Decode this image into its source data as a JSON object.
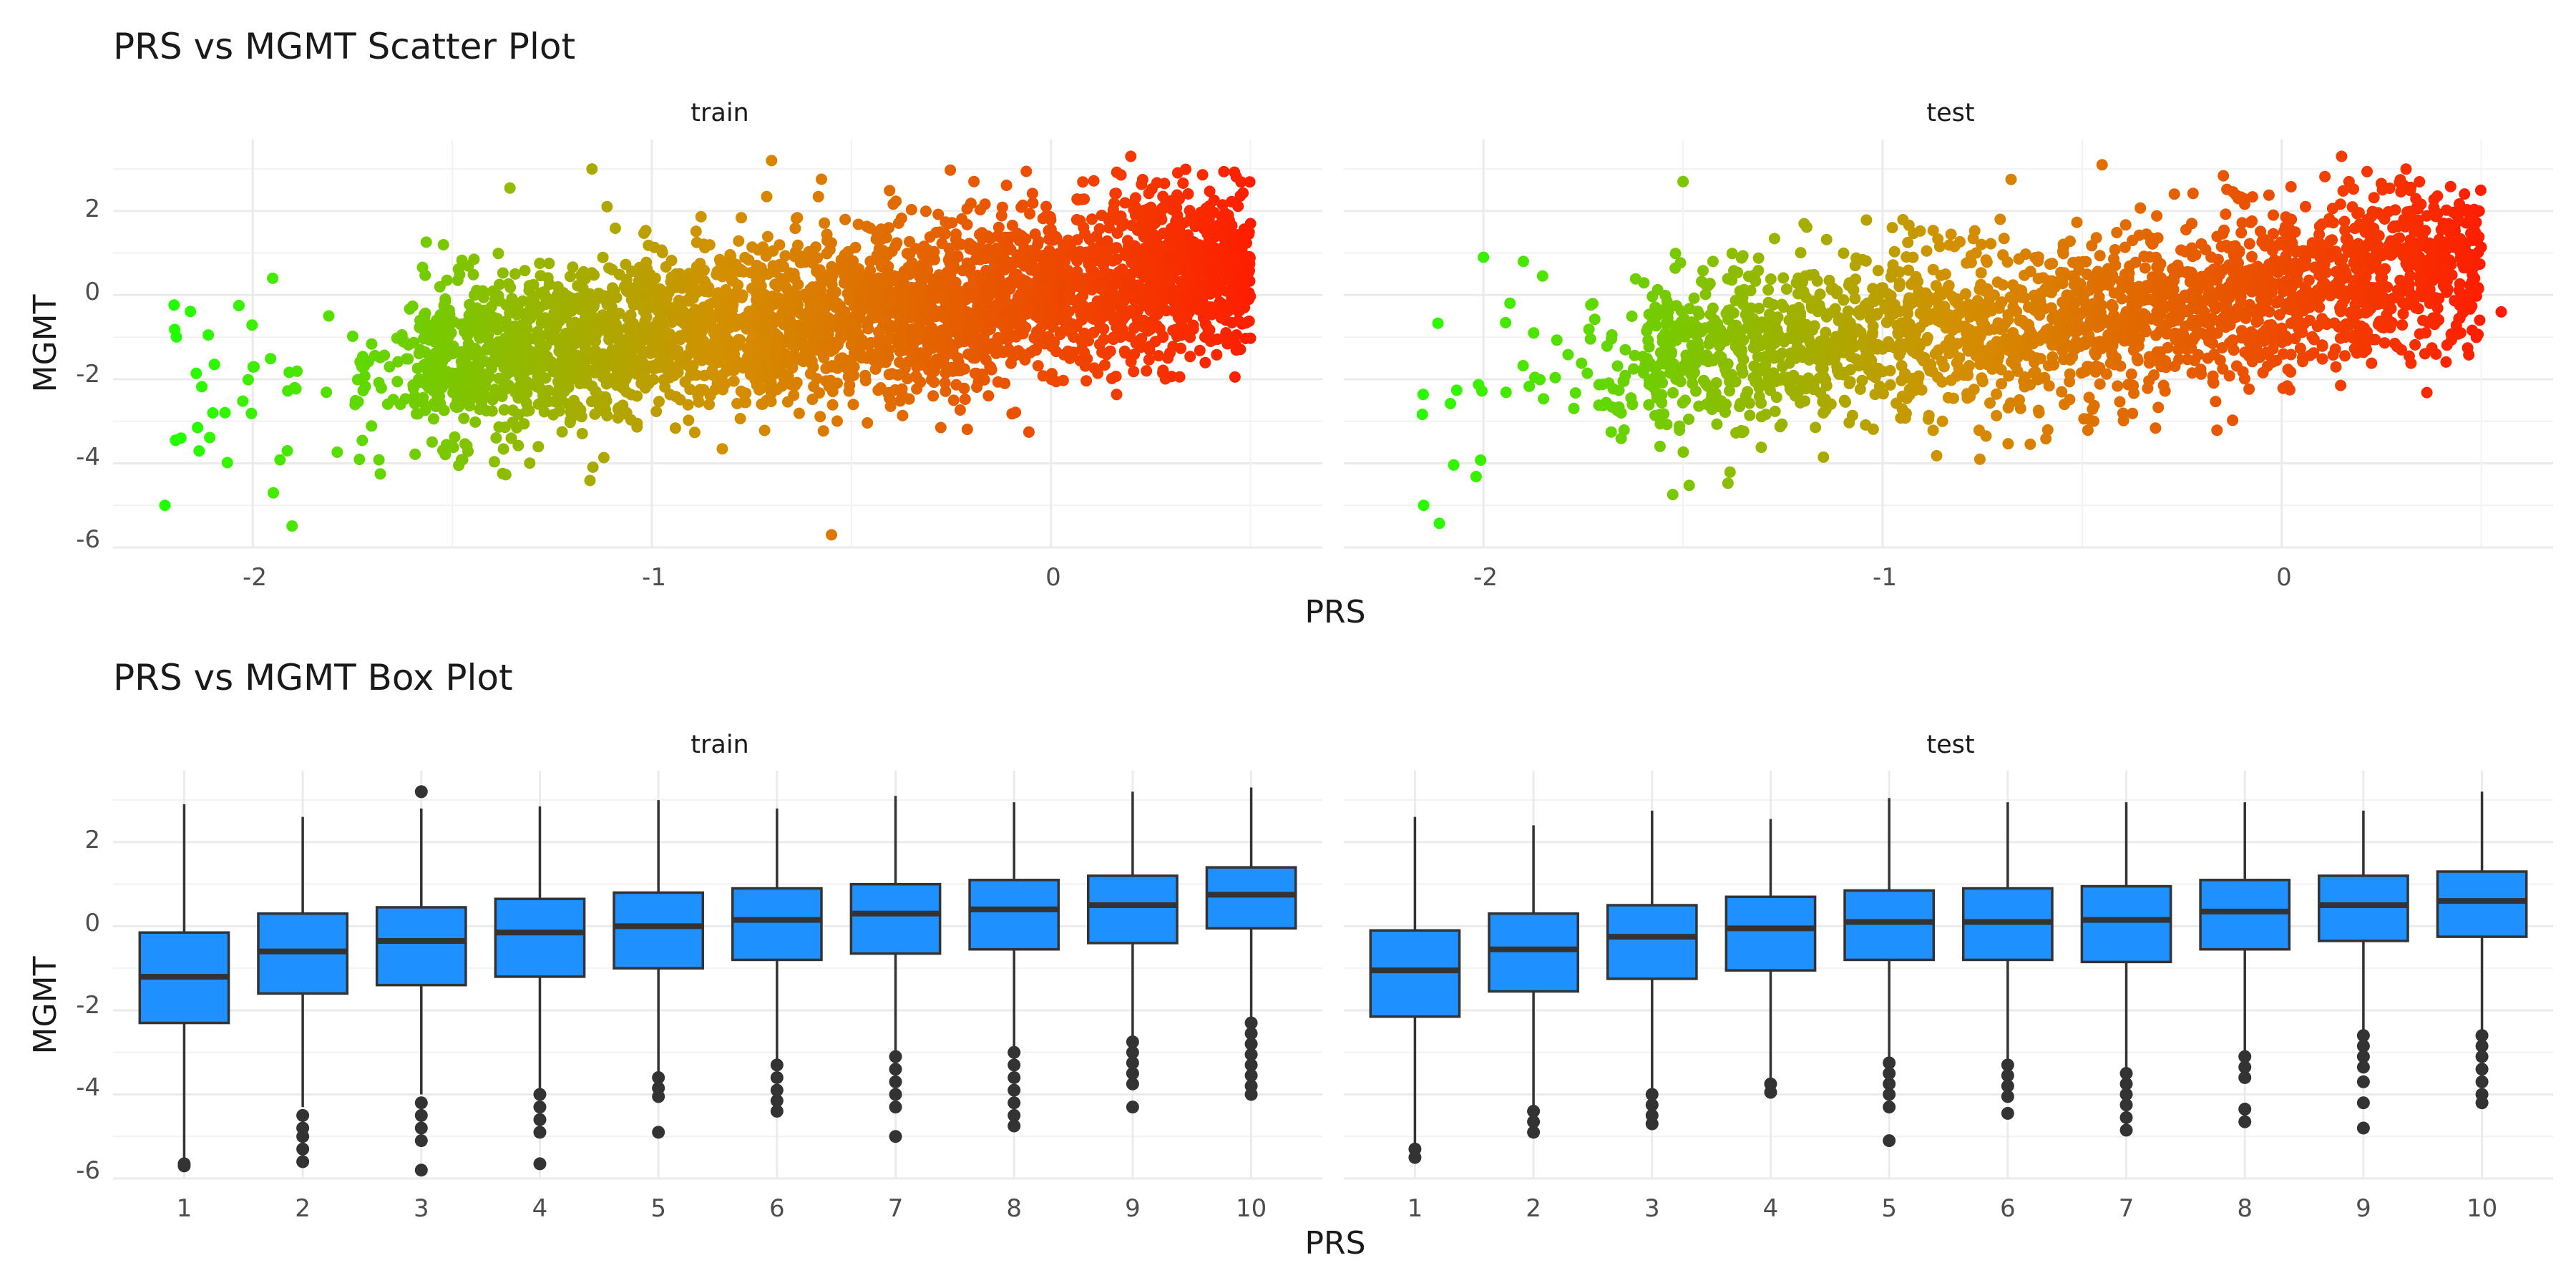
{
  "chart_data": [
    {
      "type": "scatter",
      "title": "PRS vs MGMT Scatter Plot",
      "xlabel": "PRS",
      "ylabel": "MGMT",
      "xlim": [
        -2.35,
        0.68
      ],
      "ylim": [
        -6.0,
        3.7
      ],
      "x_ticks": [
        -2,
        -1,
        0
      ],
      "y_ticks": [
        -6,
        -4,
        -2,
        0,
        2
      ],
      "grid": true,
      "color_gradient": {
        "low": "#22ff00",
        "mid": "#d39000",
        "high": "#ff1a00",
        "variable": "PRS"
      },
      "facets": [
        {
          "name": "train",
          "x_range": [
            -2.2,
            0.55
          ],
          "approx_trend": [
            [
              -1.6,
              -1.7
            ],
            [
              -1.0,
              -0.9
            ],
            [
              -0.5,
              -0.5
            ],
            [
              0.0,
              0.1
            ],
            [
              0.3,
              0.6
            ]
          ],
          "notable_points": [
            [
              -2.22,
              -5.0
            ],
            [
              -2.18,
              -3.4
            ],
            [
              -2.1,
              -2.8
            ],
            [
              -1.95,
              0.4
            ],
            [
              -1.15,
              3.0
            ],
            [
              -0.7,
              3.2
            ],
            [
              -0.55,
              -5.7
            ],
            [
              0.2,
              3.3
            ],
            [
              0.5,
              1.7
            ]
          ]
        },
        {
          "name": "test",
          "x_range": [
            -2.2,
            0.55
          ],
          "approx_trend": [
            [
              -1.6,
              -1.6
            ],
            [
              -1.0,
              -0.9
            ],
            [
              -0.5,
              -0.5
            ],
            [
              0.0,
              0.1
            ],
            [
              0.3,
              0.6
            ]
          ],
          "notable_points": [
            [
              -2.15,
              -5.0
            ],
            [
              -2.0,
              0.9
            ],
            [
              -1.9,
              0.8
            ],
            [
              -1.5,
              2.7
            ],
            [
              -0.45,
              3.1
            ],
            [
              0.15,
              3.3
            ],
            [
              0.55,
              -0.4
            ]
          ]
        }
      ]
    },
    {
      "type": "box",
      "title": "PRS vs MGMT Box Plot",
      "xlabel": "PRS",
      "ylabel": "MGMT",
      "categories": [
        "1",
        "2",
        "3",
        "4",
        "5",
        "6",
        "7",
        "8",
        "9",
        "10"
      ],
      "ylim": [
        -6.0,
        3.7
      ],
      "y_ticks": [
        -6,
        -4,
        -2,
        0,
        2
      ],
      "fill": "#1e90ff",
      "grid": true,
      "facets": [
        {
          "name": "train",
          "boxes": [
            {
              "q1": -2.3,
              "median": -1.2,
              "q3": -0.15,
              "whisker_low": -5.6,
              "whisker_high": 2.9,
              "outliers": [
                -5.65,
                -5.7
              ]
            },
            {
              "q1": -1.6,
              "median": -0.6,
              "q3": 0.3,
              "whisker_low": -4.3,
              "whisker_high": 2.6,
              "outliers": [
                -4.5,
                -4.8,
                -5.0,
                -5.3,
                -5.6
              ]
            },
            {
              "q1": -1.4,
              "median": -0.35,
              "q3": 0.45,
              "whisker_low": -4.0,
              "whisker_high": 2.8,
              "outliers": [
                3.2,
                -4.2,
                -4.5,
                -4.8,
                -5.1,
                -5.8
              ]
            },
            {
              "q1": -1.2,
              "median": -0.15,
              "q3": 0.65,
              "whisker_low": -3.9,
              "whisker_high": 2.85,
              "outliers": [
                -4.0,
                -4.3,
                -4.6,
                -4.9,
                -5.65
              ]
            },
            {
              "q1": -1.0,
              "median": 0.0,
              "q3": 0.8,
              "whisker_low": -3.5,
              "whisker_high": 3.0,
              "outliers": [
                -3.6,
                -3.85,
                -4.05,
                -4.9
              ]
            },
            {
              "q1": -0.8,
              "median": 0.15,
              "q3": 0.9,
              "whisker_low": -3.2,
              "whisker_high": 2.8,
              "outliers": [
                -3.3,
                -3.6,
                -3.9,
                -4.15,
                -4.4
              ]
            },
            {
              "q1": -0.65,
              "median": 0.3,
              "q3": 1.0,
              "whisker_low": -3.0,
              "whisker_high": 3.1,
              "outliers": [
                -3.1,
                -3.4,
                -3.7,
                -4.0,
                -4.3,
                -5.0
              ]
            },
            {
              "q1": -0.55,
              "median": 0.4,
              "q3": 1.1,
              "whisker_low": -2.9,
              "whisker_high": 2.95,
              "outliers": [
                -3.0,
                -3.3,
                -3.6,
                -3.9,
                -4.2,
                -4.5,
                -4.75
              ]
            },
            {
              "q1": -0.4,
              "median": 0.5,
              "q3": 1.2,
              "whisker_low": -2.6,
              "whisker_high": 3.2,
              "outliers": [
                -2.75,
                -3.0,
                -3.25,
                -3.5,
                -3.75,
                -4.3
              ]
            },
            {
              "q1": -0.05,
              "median": 0.75,
              "q3": 1.4,
              "whisker_low": -2.2,
              "whisker_high": 3.3,
              "outliers": [
                -2.3,
                -2.55,
                -2.8,
                -3.05,
                -3.3,
                -3.55,
                -3.8,
                -4.0
              ]
            }
          ]
        },
        {
          "name": "test",
          "boxes": [
            {
              "q1": -2.15,
              "median": -1.05,
              "q3": -0.1,
              "whisker_low": -5.2,
              "whisker_high": 2.6,
              "outliers": [
                -5.3,
                -5.5
              ]
            },
            {
              "q1": -1.55,
              "median": -0.55,
              "q3": 0.3,
              "whisker_low": -4.3,
              "whisker_high": 2.4,
              "outliers": [
                -4.4,
                -4.65,
                -4.9
              ]
            },
            {
              "q1": -1.25,
              "median": -0.25,
              "q3": 0.5,
              "whisker_low": -3.9,
              "whisker_high": 2.75,
              "outliers": [
                -4.0,
                -4.25,
                -4.5,
                -4.7
              ]
            },
            {
              "q1": -1.05,
              "median": -0.05,
              "q3": 0.7,
              "whisker_low": -3.65,
              "whisker_high": 2.55,
              "outliers": [
                -3.75,
                -3.95
              ]
            },
            {
              "q1": -0.8,
              "median": 0.1,
              "q3": 0.85,
              "whisker_low": -3.1,
              "whisker_high": 3.05,
              "outliers": [
                -3.25,
                -3.5,
                -3.75,
                -4.0,
                -4.3,
                -5.1
              ]
            },
            {
              "q1": -0.8,
              "median": 0.1,
              "q3": 0.9,
              "whisker_low": -3.2,
              "whisker_high": 2.95,
              "outliers": [
                -3.3,
                -3.55,
                -3.8,
                -4.05,
                -4.45
              ]
            },
            {
              "q1": -0.85,
              "median": 0.15,
              "q3": 0.95,
              "whisker_low": -3.4,
              "whisker_high": 2.95,
              "outliers": [
                -3.5,
                -3.75,
                -4.0,
                -4.25,
                -4.55,
                -4.85
              ]
            },
            {
              "q1": -0.55,
              "median": 0.35,
              "q3": 1.1,
              "whisker_low": -3.0,
              "whisker_high": 2.95,
              "outliers": [
                -3.1,
                -3.35,
                -3.6,
                -4.35,
                -4.65
              ]
            },
            {
              "q1": -0.35,
              "median": 0.5,
              "q3": 1.2,
              "whisker_low": -2.5,
              "whisker_high": 2.75,
              "outliers": [
                -2.6,
                -2.85,
                -3.1,
                -3.35,
                -3.7,
                -4.2,
                -4.8
              ]
            },
            {
              "q1": -0.25,
              "median": 0.6,
              "q3": 1.3,
              "whisker_low": -2.5,
              "whisker_high": 3.2,
              "outliers": [
                -2.6,
                -2.85,
                -3.1,
                -3.4,
                -3.7,
                -4.0,
                -4.2
              ]
            }
          ]
        }
      ]
    }
  ]
}
